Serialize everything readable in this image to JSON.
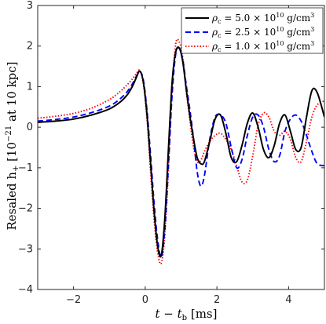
{
  "chart_data": {
    "type": "line",
    "xlabel": "t − t",
    "xlabel_sub": "b",
    "xlabel_unit": " [ms]",
    "ylabel": "Resaled h",
    "ylabel_sub": "+",
    "ylabel_bracket": " [10",
    "ylabel_exp": "−21",
    "ylabel_tail": " at 10 kpc]",
    "xlim": [
      -3,
      5
    ],
    "ylim": [
      -4,
      3
    ],
    "xticks": [
      -2,
      0,
      2,
      4
    ],
    "yticks": [
      -4,
      -3,
      -2,
      -1,
      0,
      1,
      2,
      3
    ],
    "grid": false,
    "legend_position": "top-right",
    "series": [
      {
        "name": "ρc = 5.0 × 10^10 g/cm^3",
        "legend_parts": {
          "prefix": "ρ",
          "sub": "c",
          "mid": " = 5.0 × 10",
          "exp": "10",
          "unit": " g/cm",
          "unit_exp": "3"
        },
        "color": "#000000",
        "style": "solid",
        "x": [
          -3.0,
          -2.5,
          -2.0,
          -1.5,
          -1.0,
          -0.7,
          -0.5,
          -0.35,
          -0.25,
          -0.15,
          -0.05,
          0.05,
          0.15,
          0.25,
          0.35,
          0.45,
          0.55,
          0.65,
          0.75,
          0.85,
          0.95,
          1.05,
          1.15,
          1.25,
          1.35,
          1.45,
          1.55,
          1.65,
          1.8,
          1.95,
          2.1,
          2.25,
          2.4,
          2.55,
          2.7,
          2.85,
          3.0,
          3.15,
          3.3,
          3.45,
          3.6,
          3.75,
          3.9,
          4.05,
          4.2,
          4.35,
          4.5,
          4.65,
          4.8,
          5.0
        ],
        "y": [
          0.12,
          0.15,
          0.2,
          0.3,
          0.45,
          0.62,
          0.8,
          1.02,
          1.22,
          1.38,
          1.1,
          0.3,
          -0.9,
          -2.1,
          -2.95,
          -3.15,
          -2.2,
          -0.5,
          1.1,
          1.85,
          1.95,
          1.6,
          0.9,
          0.25,
          -0.3,
          -0.75,
          -0.9,
          -0.85,
          -0.35,
          0.2,
          0.3,
          -0.15,
          -0.75,
          -0.85,
          -0.45,
          0.1,
          0.35,
          0.0,
          -0.55,
          -0.75,
          -0.45,
          0.1,
          0.3,
          -0.1,
          -0.55,
          -0.5,
          0.25,
          0.9,
          0.85,
          0.25
        ]
      },
      {
        "name": "ρc = 2.5 × 10^10 g/cm^3",
        "legend_parts": {
          "prefix": "ρ",
          "sub": "c",
          "mid": " = 2.5 × 10",
          "exp": "10",
          "unit": " g/cm",
          "unit_exp": "3"
        },
        "color": "#0000ff",
        "style": "dashed",
        "x": [
          -3.0,
          -2.5,
          -2.0,
          -1.5,
          -1.0,
          -0.7,
          -0.5,
          -0.35,
          -0.25,
          -0.15,
          -0.05,
          0.05,
          0.15,
          0.25,
          0.35,
          0.45,
          0.55,
          0.65,
          0.75,
          0.85,
          0.95,
          1.05,
          1.15,
          1.25,
          1.35,
          1.45,
          1.55,
          1.65,
          1.8,
          1.95,
          2.1,
          2.25,
          2.4,
          2.55,
          2.7,
          2.85,
          3.0,
          3.15,
          3.3,
          3.45,
          3.6,
          3.75,
          3.9,
          4.05,
          4.2,
          4.35,
          4.5,
          4.65,
          4.8,
          5.0
        ],
        "y": [
          0.15,
          0.19,
          0.25,
          0.36,
          0.52,
          0.7,
          0.88,
          1.08,
          1.25,
          1.38,
          1.15,
          0.4,
          -0.7,
          -1.9,
          -2.8,
          -3.2,
          -2.5,
          -0.9,
          0.8,
          1.8,
          1.95,
          1.65,
          1.0,
          0.4,
          -0.3,
          -1.1,
          -1.45,
          -1.2,
          -0.3,
          0.25,
          0.3,
          0.1,
          -0.5,
          -1.0,
          -0.8,
          -0.2,
          0.25,
          0.3,
          0.0,
          -0.55,
          -0.85,
          -0.7,
          -0.1,
          0.2,
          0.3,
          0.15,
          -0.2,
          -0.6,
          -0.9,
          -0.95
        ]
      },
      {
        "name": "ρc = 1.0 × 10^10 g/cm^3",
        "legend_parts": {
          "prefix": "ρ",
          "sub": "c",
          "mid": " = 1.0 × 10",
          "exp": "10",
          "unit": " g/cm",
          "unit_exp": "3"
        },
        "color": "#ff0000",
        "style": "dotted",
        "x": [
          -3.0,
          -2.5,
          -2.0,
          -1.5,
          -1.0,
          -0.7,
          -0.5,
          -0.35,
          -0.25,
          -0.15,
          -0.05,
          0.05,
          0.15,
          0.25,
          0.35,
          0.45,
          0.55,
          0.65,
          0.75,
          0.85,
          0.95,
          1.05,
          1.15,
          1.25,
          1.35,
          1.45,
          1.55,
          1.65,
          1.8,
          1.95,
          2.1,
          2.25,
          2.4,
          2.55,
          2.7,
          2.85,
          3.0,
          3.15,
          3.3,
          3.45,
          3.6,
          3.75,
          3.9,
          4.05,
          4.2,
          4.35,
          4.5,
          4.65,
          4.8,
          5.0
        ],
        "y": [
          0.22,
          0.27,
          0.34,
          0.47,
          0.68,
          0.88,
          1.05,
          1.2,
          1.32,
          1.4,
          1.05,
          0.2,
          -1.1,
          -2.3,
          -3.1,
          -3.35,
          -2.6,
          -1.0,
          0.9,
          2.05,
          2.1,
          1.7,
          0.85,
          0.15,
          -0.5,
          -0.85,
          -0.82,
          -0.6,
          -0.35,
          -0.2,
          -0.15,
          -0.3,
          -0.55,
          -0.95,
          -1.35,
          -1.3,
          -0.7,
          0.05,
          0.35,
          0.25,
          -0.1,
          -0.2,
          -0.1,
          -0.3,
          -0.75,
          -0.85,
          -0.35,
          0.25,
          0.55,
          0.65
        ]
      }
    ]
  }
}
